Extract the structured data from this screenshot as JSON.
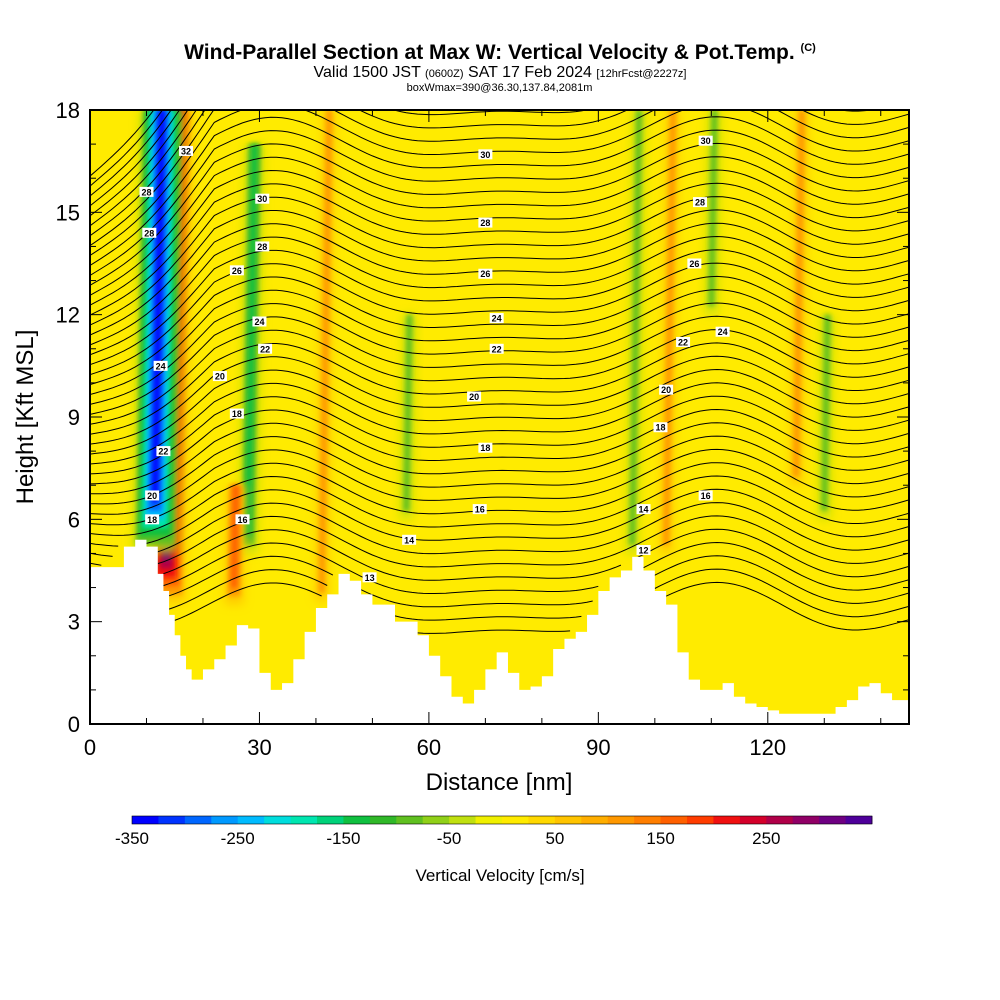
{
  "header": {
    "title": "Wind-Parallel Section at Max W: Vertical Velocity & Pot.Temp.",
    "copyright": "(C)",
    "valid_prefix": "Valid 1500 JST",
    "valid_utc": "(0600Z)",
    "valid_date": "SAT 17 Feb 2024",
    "forecast": "[12hrFcst@2227z]",
    "box_info": "boxWmax=390@36.30,137.84,2081m"
  },
  "colors": {
    "background": "#ffffff",
    "field_base": "#ffeb00",
    "terrain": "#ffffff",
    "contour": "#000000"
  },
  "chart_data": {
    "type": "heatmap",
    "title": "Wind-Parallel Section at Max W: Vertical Velocity & Pot.Temp.",
    "xlabel": "Distance [nm]",
    "ylabel": "Height [Kft MSL]",
    "xlim": [
      0,
      145
    ],
    "ylim": [
      0,
      18
    ],
    "xticks": [
      0,
      30,
      60,
      90,
      120
    ],
    "yticks": [
      0,
      3,
      6,
      9,
      12,
      15,
      18
    ],
    "colorbar": {
      "label": "Vertical Velocity [cm/s]",
      "min": -350,
      "max": 350,
      "step": 25,
      "tick_values": [
        -350,
        -250,
        -150,
        -50,
        50,
        150,
        250
      ],
      "colors": [
        "#0000ff",
        "#0033ff",
        "#0066ff",
        "#0099ff",
        "#00bbff",
        "#00dddd",
        "#00e6b0",
        "#00d27a",
        "#10c040",
        "#30b828",
        "#60c020",
        "#90d018",
        "#c0e010",
        "#f0f000",
        "#ffeb00",
        "#ffd800",
        "#ffc400",
        "#ffae00",
        "#ff9800",
        "#ff7e00",
        "#ff6000",
        "#ff3c00",
        "#f01010",
        "#d4002a",
        "#b00048",
        "#900066",
        "#6e0082",
        "#4e009a"
      ]
    },
    "terrain_profile": {
      "x": [
        0,
        4,
        6,
        8,
        10,
        12,
        13,
        14,
        15,
        16,
        17,
        18,
        20,
        22,
        24,
        26,
        28,
        30,
        32,
        34,
        36,
        38,
        40,
        42,
        44,
        46,
        48,
        50,
        54,
        58,
        60,
        62,
        64,
        66,
        68,
        70,
        72,
        74,
        76,
        78,
        80,
        82,
        84,
        86,
        88,
        90,
        92,
        94,
        96,
        98,
        100,
        102,
        104,
        106,
        108,
        110,
        112,
        114,
        116,
        118,
        120,
        122,
        124,
        126,
        128,
        130,
        132,
        134,
        136,
        138,
        140,
        142,
        145
      ],
      "height": [
        4.6,
        4.6,
        5.2,
        5.4,
        5.2,
        4.4,
        3.9,
        3.2,
        2.6,
        2.0,
        1.6,
        1.3,
        1.6,
        1.9,
        2.3,
        2.9,
        2.8,
        1.5,
        1.0,
        1.2,
        1.9,
        2.7,
        3.4,
        3.8,
        4.4,
        4.2,
        3.8,
        3.5,
        3.0,
        2.6,
        2.0,
        1.4,
        0.8,
        0.6,
        1.0,
        1.6,
        2.1,
        1.5,
        1.0,
        1.1,
        1.4,
        2.2,
        2.5,
        2.7,
        3.2,
        3.9,
        4.3,
        4.5,
        4.9,
        4.5,
        3.9,
        3.5,
        2.1,
        1.3,
        1.0,
        1.0,
        1.2,
        0.8,
        0.6,
        0.5,
        0.4,
        0.3,
        0.3,
        0.3,
        0.3,
        0.3,
        0.5,
        0.7,
        1.1,
        1.2,
        0.9,
        0.7,
        0.7
      ]
    },
    "potential_temperature_contours": {
      "interval": 1,
      "labeled_levels": [
        12,
        13,
        14,
        16,
        18,
        20,
        22,
        24,
        26,
        28,
        30,
        32
      ],
      "labels": [
        {
          "text": "32",
          "x": 17,
          "h": 16.8
        },
        {
          "text": "28",
          "x": 10,
          "h": 15.6
        },
        {
          "text": "28",
          "x": 10.5,
          "h": 14.4
        },
        {
          "text": "30",
          "x": 30.5,
          "h": 15.4
        },
        {
          "text": "28",
          "x": 30.5,
          "h": 14.0
        },
        {
          "text": "26",
          "x": 26,
          "h": 13.3
        },
        {
          "text": "24",
          "x": 30,
          "h": 11.8
        },
        {
          "text": "22",
          "x": 31,
          "h": 11.0
        },
        {
          "text": "24",
          "x": 12.5,
          "h": 10.5
        },
        {
          "text": "20",
          "x": 23,
          "h": 10.2
        },
        {
          "text": "18",
          "x": 26,
          "h": 9.1
        },
        {
          "text": "22",
          "x": 13,
          "h": 8.0
        },
        {
          "text": "20",
          "x": 11,
          "h": 6.7
        },
        {
          "text": "18",
          "x": 11,
          "h": 6.0
        },
        {
          "text": "16",
          "x": 27,
          "h": 6.0
        },
        {
          "text": "30",
          "x": 70,
          "h": 16.7
        },
        {
          "text": "28",
          "x": 70,
          "h": 14.7
        },
        {
          "text": "26",
          "x": 70,
          "h": 13.2
        },
        {
          "text": "24",
          "x": 72,
          "h": 11.9
        },
        {
          "text": "22",
          "x": 72,
          "h": 11.0
        },
        {
          "text": "20",
          "x": 68,
          "h": 9.6
        },
        {
          "text": "18",
          "x": 70,
          "h": 8.1
        },
        {
          "text": "16",
          "x": 69,
          "h": 6.3
        },
        {
          "text": "14",
          "x": 56.5,
          "h": 5.4
        },
        {
          "text": "13",
          "x": 49.5,
          "h": 4.3
        },
        {
          "text": "30",
          "x": 109,
          "h": 17.1
        },
        {
          "text": "28",
          "x": 108,
          "h": 15.3
        },
        {
          "text": "26",
          "x": 107,
          "h": 13.5
        },
        {
          "text": "24",
          "x": 112,
          "h": 11.5
        },
        {
          "text": "22",
          "x": 105,
          "h": 11.2
        },
        {
          "text": "20",
          "x": 102,
          "h": 9.8
        },
        {
          "text": "18",
          "x": 101,
          "h": 8.7
        },
        {
          "text": "16",
          "x": 109,
          "h": 6.7
        },
        {
          "text": "14",
          "x": 98,
          "h": 6.3
        },
        {
          "text": "12",
          "x": 98,
          "h": 5.1
        }
      ]
    },
    "vertical_velocity_features": [
      {
        "kind": "updraft",
        "x": 13.5,
        "h_range": [
          3.5,
          18
        ],
        "w": 300
      },
      {
        "kind": "downdraft",
        "x": 11.5,
        "h_range": [
          5.0,
          18
        ],
        "w": -350
      },
      {
        "kind": "downdraft",
        "x": 28,
        "h_range": [
          5.0,
          17
        ],
        "w": -150
      },
      {
        "kind": "updraft",
        "x": 25.5,
        "h_range": [
          3.5,
          7
        ],
        "w": 150
      },
      {
        "kind": "updraft",
        "x": 41,
        "h_range": [
          3.5,
          18
        ],
        "w": 100
      },
      {
        "kind": "downdraft",
        "x": 56,
        "h_range": [
          6,
          12
        ],
        "w": -100
      },
      {
        "kind": "downdraft",
        "x": 96,
        "h_range": [
          5,
          18
        ],
        "w": -100
      },
      {
        "kind": "updraft",
        "x": 102,
        "h_range": [
          5,
          18
        ],
        "w": 100
      },
      {
        "kind": "downdraft",
        "x": 110,
        "h_range": [
          12,
          18
        ],
        "w": -75
      },
      {
        "kind": "updraft",
        "x": 125,
        "h_range": [
          7,
          18
        ],
        "w": 100
      },
      {
        "kind": "downdraft",
        "x": 130,
        "h_range": [
          6,
          12
        ],
        "w": -75
      }
    ]
  }
}
